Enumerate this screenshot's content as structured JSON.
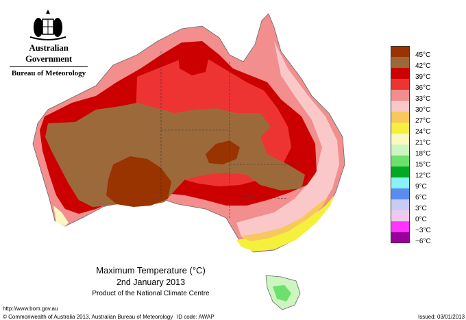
{
  "header": {
    "government": "Australian Government",
    "bureau": "Bureau of Meteorology"
  },
  "map": {
    "title": "Maximum Temperature (°C)",
    "date": "2nd January 2013",
    "product": "Product of the National Climate Centre"
  },
  "legend": [
    {
      "label": "45°C",
      "color": "#993300"
    },
    {
      "label": "42°C",
      "color": "#9c6a3a"
    },
    {
      "label": "39°C",
      "color": "#cc0000"
    },
    {
      "label": "36°C",
      "color": "#ee3333"
    },
    {
      "label": "33°C",
      "color": "#f28e8e"
    },
    {
      "label": "30°C",
      "color": "#fac8c8"
    },
    {
      "label": "27°C",
      "color": "#f7c85c"
    },
    {
      "label": "24°C",
      "color": "#f5f03c"
    },
    {
      "label": "21°C",
      "color": "#f9f9c0"
    },
    {
      "label": "18°C",
      "color": "#ccf5c0"
    },
    {
      "label": "15°C",
      "color": "#6ee06e"
    },
    {
      "label": "12°C",
      "color": "#00aa22"
    },
    {
      "label": "9°C",
      "color": "#88f2f7"
    },
    {
      "label": "6°C",
      "color": "#5a8cf0"
    },
    {
      "label": "3°C",
      "color": "#c8ccf4"
    },
    {
      "label": "0°C",
      "color": "#eecaee"
    },
    {
      "label": "−3°C",
      "color": "#ff33ff"
    },
    {
      "label": "−6°C",
      "color": "#990099"
    }
  ],
  "footer": {
    "url": "http://www.bom.gov.au",
    "copyright": "© Commonwealth of Australia 2013, Australian Bureau of Meteorology",
    "id_code": "ID code: AWAP",
    "issued": "Issued: 03/01/2013"
  }
}
